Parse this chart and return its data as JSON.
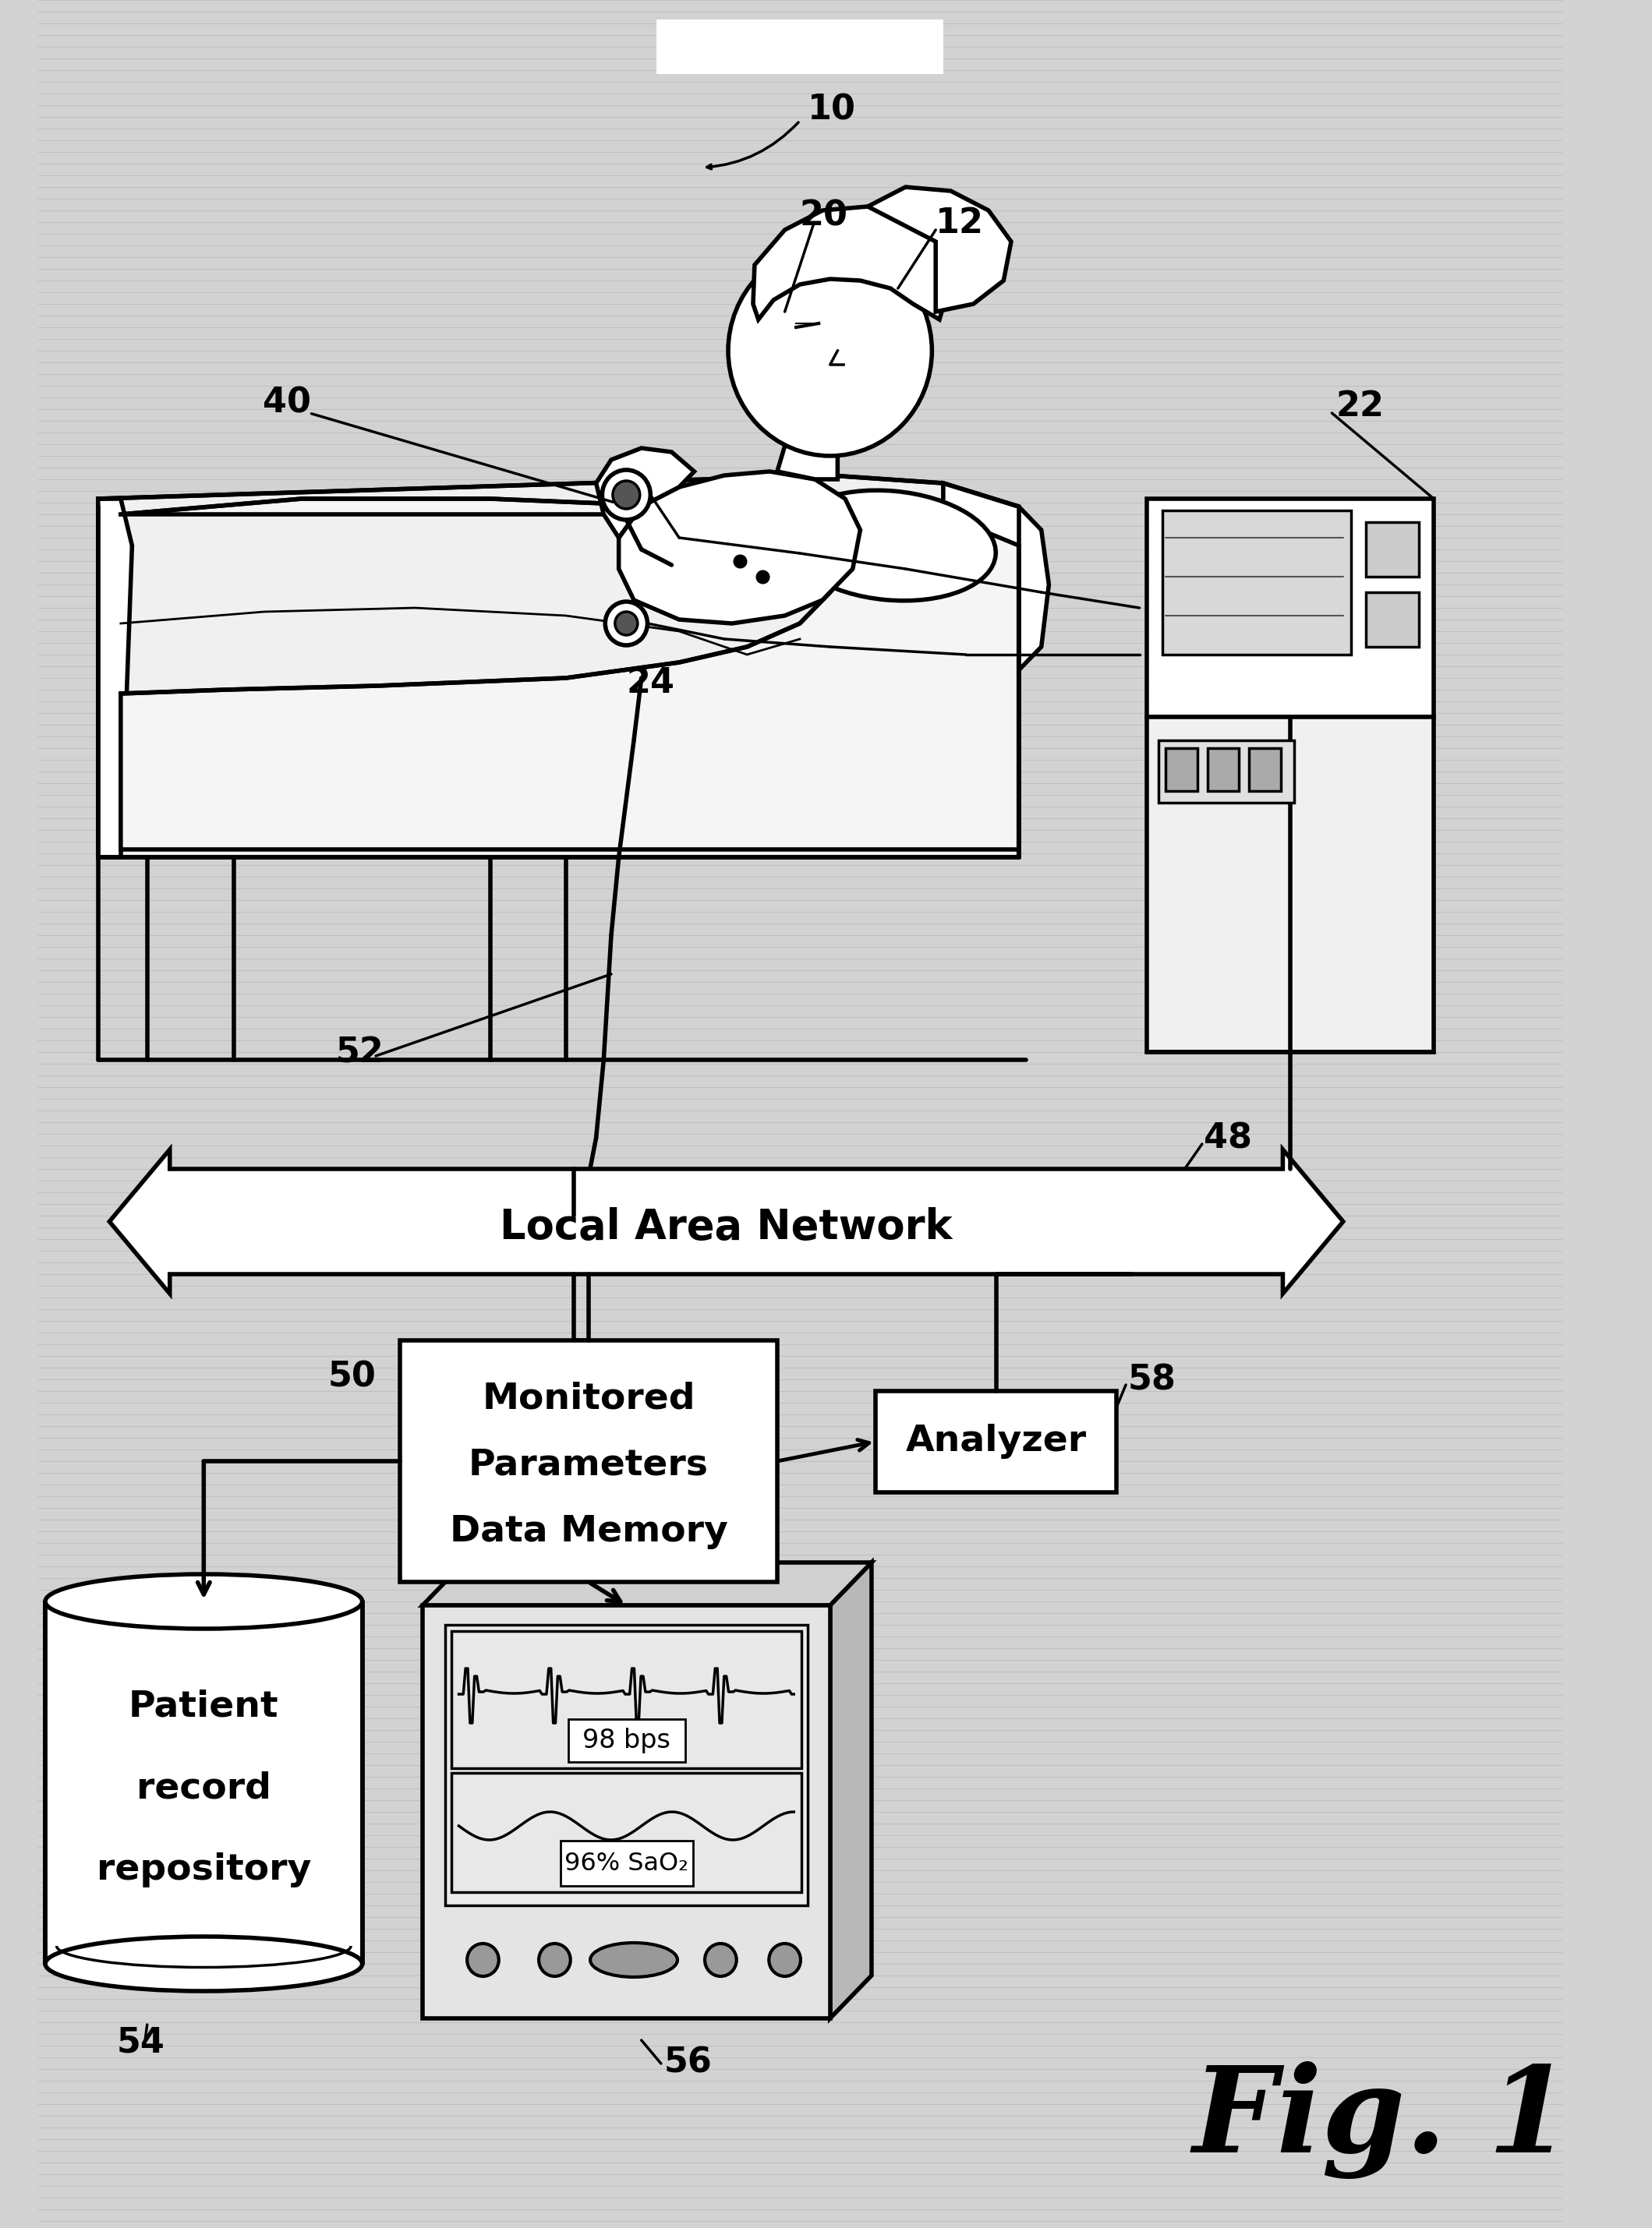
{
  "bg_color": "#d2d2d2",
  "line_color": "#000000",
  "white": "#ffffff",
  "light_gray": "#e8e8e8",
  "mid_gray": "#c8c8c8",
  "fig_label": "Fig. 1",
  "lan_text": "Local Area Network",
  "box50_lines": [
    "Monitored",
    "Parameters",
    "Data Memory"
  ],
  "box58_text": "Analyzer",
  "repo_lines": [
    "Patient",
    "record",
    "repository"
  ],
  "display_line1": "98 bps",
  "display_line2": "96% SaO₂",
  "lw_main": 4.0,
  "lw_thin": 2.5,
  "lw_hair": 1.0
}
